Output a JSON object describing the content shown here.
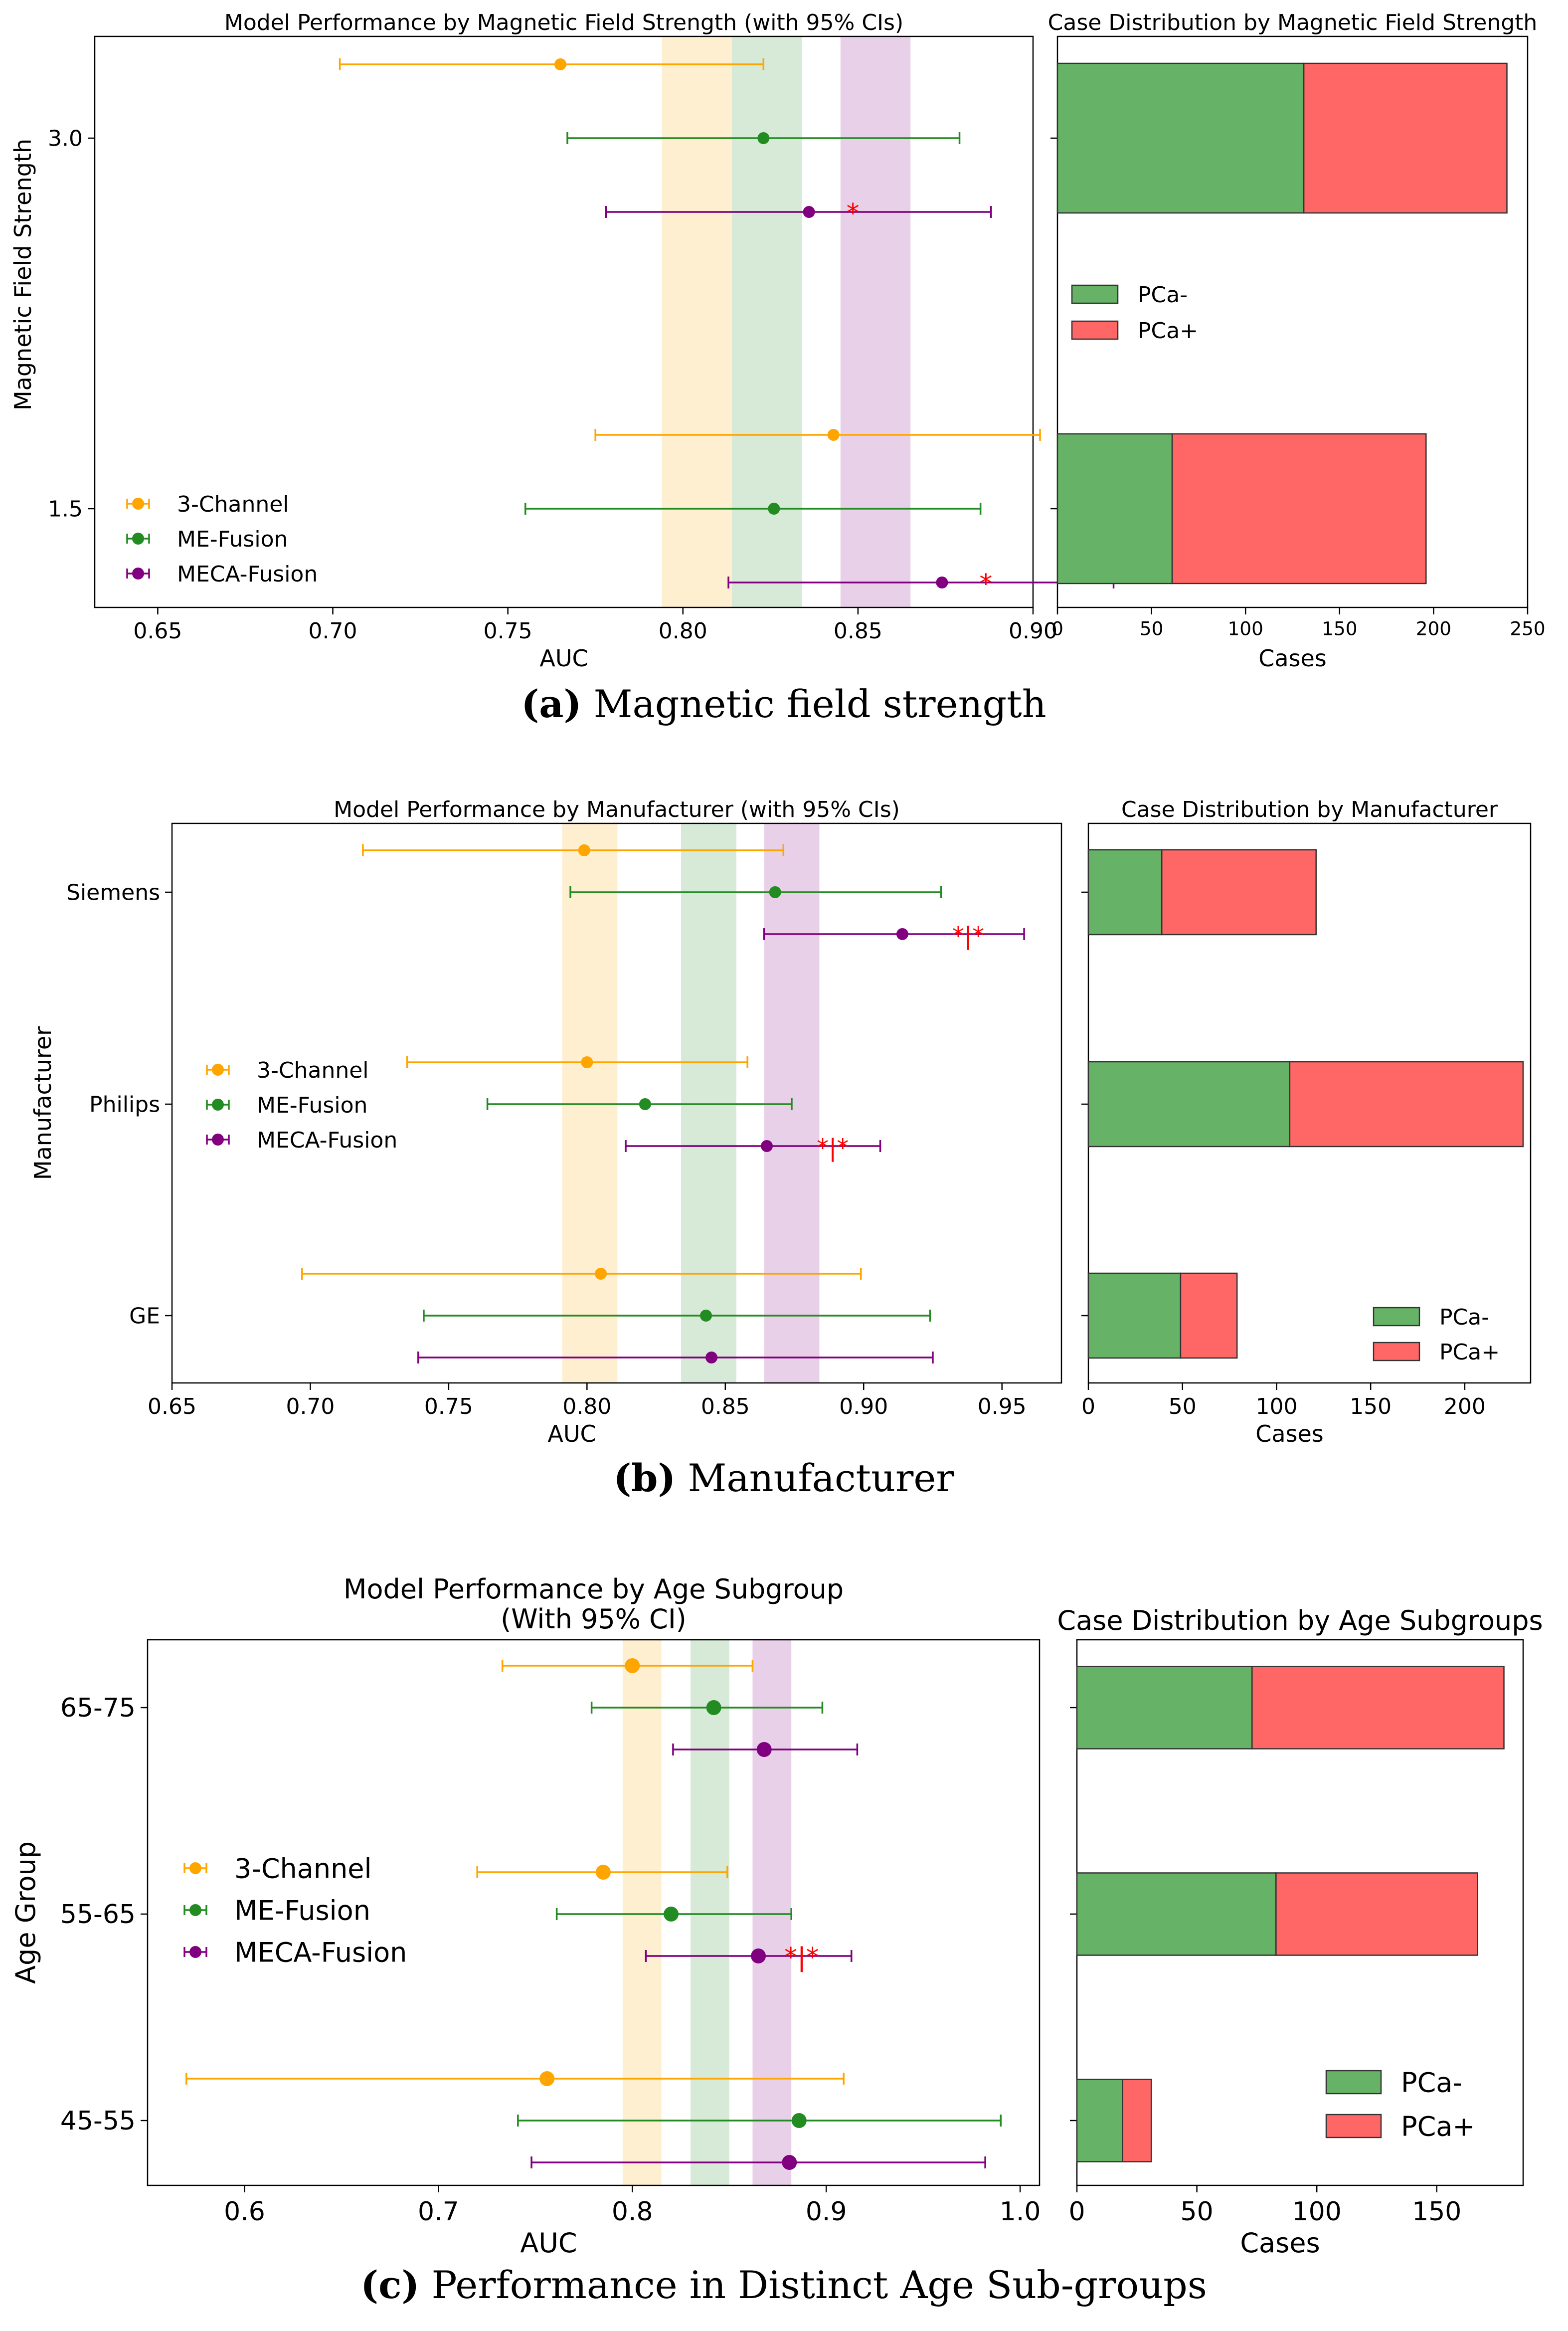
{
  "colors": {
    "three_channel": "#FFA500",
    "me_fusion": "#228B22",
    "meca_fusion": "#800080",
    "pca_neg": "#66B266",
    "pca_pos": "#FF6666",
    "significance": "#FF0000"
  },
  "chart_data": [
    {
      "id": "a",
      "type": "scatter",
      "subtype": "forest-plot",
      "title": "Model Performance by Magnetic Field Strength (with 95% CIs)",
      "xlabel": "AUC",
      "ylabel": "Magnetic Field Strength",
      "xlim": [
        0.632,
        0.9
      ],
      "xticks": [
        0.65,
        0.7,
        0.75,
        0.8,
        0.85,
        0.9
      ],
      "xtick_labels": [
        "0.65",
        "0.70",
        "0.75",
        "0.80",
        "0.85",
        "0.90"
      ],
      "categories": [
        "3.0",
        "1.5"
      ],
      "legend_position": "lower-left",
      "series": [
        {
          "name": "3-Channel",
          "color_key": "three_channel",
          "points": [
            {
              "category": "3.0",
              "auc": 0.765,
              "lo": 0.702,
              "hi": 0.823,
              "sig": ""
            },
            {
              "category": "1.5",
              "auc": 0.843,
              "lo": 0.775,
              "hi": 0.902,
              "sig": ""
            }
          ]
        },
        {
          "name": "ME-Fusion",
          "color_key": "me_fusion",
          "points": [
            {
              "category": "3.0",
              "auc": 0.823,
              "lo": 0.767,
              "hi": 0.879,
              "sig": ""
            },
            {
              "category": "1.5",
              "auc": 0.826,
              "lo": 0.755,
              "hi": 0.885,
              "sig": ""
            }
          ]
        },
        {
          "name": "MECA-Fusion",
          "color_key": "meca_fusion",
          "points": [
            {
              "category": "3.0",
              "auc": 0.836,
              "lo": 0.778,
              "hi": 0.888,
              "sig": "*"
            },
            {
              "category": "1.5",
              "auc": 0.874,
              "lo": 0.813,
              "hi": 0.923,
              "sig": "*"
            }
          ]
        }
      ],
      "bands": [
        {
          "color_key": "three_channel",
          "from": 0.794,
          "to": 0.814
        },
        {
          "color_key": "me_fusion",
          "from": 0.814,
          "to": 0.834
        },
        {
          "color_key": "meca_fusion",
          "from": 0.845,
          "to": 0.865
        }
      ],
      "bar_chart": {
        "type": "bar",
        "orientation": "horizontal",
        "stacked": true,
        "title": "Case Distribution by Magnetic Field Strength",
        "xlabel": "Cases",
        "xlim": [
          0,
          250
        ],
        "xticks": [
          0,
          50,
          100,
          150,
          200,
          250
        ],
        "xtick_labels": [
          "0",
          "50",
          "100",
          "150",
          "200",
          "250"
        ],
        "categories": [
          "3.0",
          "1.5"
        ],
        "series": [
          {
            "name": "PCa-",
            "color_key": "pca_neg",
            "values": [
              131,
              61
            ]
          },
          {
            "name": "PCa+",
            "color_key": "pca_pos",
            "values": [
              108,
              135
            ]
          }
        ],
        "legend_position": "center-left"
      },
      "caption_label": "(a)",
      "caption_text": " Magnetic field strength"
    },
    {
      "id": "b",
      "type": "scatter",
      "subtype": "forest-plot",
      "title": "Model Performance by Manufacturer (with 95% CIs)",
      "xlabel": "AUC",
      "ylabel": "Manufacturer",
      "xlim": [
        0.65,
        0.9715
      ],
      "xticks": [
        0.65,
        0.7,
        0.75,
        0.8,
        0.85,
        0.9,
        0.95
      ],
      "xtick_labels": [
        "0.65",
        "0.70",
        "0.75",
        "0.80",
        "0.85",
        "0.90",
        "0.95"
      ],
      "categories": [
        "Siemens",
        "Philips",
        "GE"
      ],
      "legend_position": "center-left",
      "series": [
        {
          "name": "3-Channel",
          "color_key": "three_channel",
          "points": [
            {
              "category": "Siemens",
              "auc": 0.799,
              "lo": 0.719,
              "hi": 0.871,
              "sig": ""
            },
            {
              "category": "Philips",
              "auc": 0.8,
              "lo": 0.735,
              "hi": 0.858,
              "sig": ""
            },
            {
              "category": "GE",
              "auc": 0.805,
              "lo": 0.697,
              "hi": 0.899,
              "sig": ""
            }
          ]
        },
        {
          "name": "ME-Fusion",
          "color_key": "me_fusion",
          "points": [
            {
              "category": "Siemens",
              "auc": 0.868,
              "lo": 0.794,
              "hi": 0.928,
              "sig": ""
            },
            {
              "category": "Philips",
              "auc": 0.821,
              "lo": 0.764,
              "hi": 0.874,
              "sig": ""
            },
            {
              "category": "GE",
              "auc": 0.843,
              "lo": 0.741,
              "hi": 0.924,
              "sig": ""
            }
          ]
        },
        {
          "name": "MECA-Fusion",
          "color_key": "meca_fusion",
          "points": [
            {
              "category": "Siemens",
              "auc": 0.914,
              "lo": 0.864,
              "hi": 0.958,
              "sig": "*|*"
            },
            {
              "category": "Philips",
              "auc": 0.865,
              "lo": 0.814,
              "hi": 0.906,
              "sig": "*|*"
            },
            {
              "category": "GE",
              "auc": 0.845,
              "lo": 0.739,
              "hi": 0.925,
              "sig": ""
            }
          ]
        }
      ],
      "bands": [
        {
          "color_key": "three_channel",
          "from": 0.791,
          "to": 0.811
        },
        {
          "color_key": "me_fusion",
          "from": 0.834,
          "to": 0.854
        },
        {
          "color_key": "meca_fusion",
          "from": 0.864,
          "to": 0.884
        }
      ],
      "bar_chart": {
        "type": "bar",
        "orientation": "horizontal",
        "stacked": true,
        "title": "Case Distribution by Manufacturer",
        "xlabel": "Cases",
        "xlim": [
          0,
          235
        ],
        "xticks": [
          0,
          50,
          100,
          150,
          200
        ],
        "xtick_labels": [
          "0",
          "50",
          "100",
          "150",
          "200"
        ],
        "categories": [
          "Siemens",
          "Philips",
          "GE"
        ],
        "series": [
          {
            "name": "PCa-",
            "color_key": "pca_neg",
            "values": [
              39,
              107,
              49
            ]
          },
          {
            "name": "PCa+",
            "color_key": "pca_pos",
            "values": [
              82,
              124,
              30
            ]
          }
        ],
        "legend_position": "lower-right"
      },
      "caption_label": "(b)",
      "caption_text": " Manufacturer"
    },
    {
      "id": "c",
      "type": "scatter",
      "subtype": "forest-plot",
      "title": "Model Performance by Age Subgroup\n(With 95% CI)",
      "xlabel": "AUC",
      "ylabel": "Age Group",
      "xlim": [
        0.55,
        1.01
      ],
      "xticks": [
        0.6,
        0.7,
        0.8,
        0.9,
        1.0
      ],
      "xtick_labels": [
        "0.6",
        "0.7",
        "0.8",
        "0.9",
        "1.0"
      ],
      "categories": [
        "65-75",
        "55-65",
        "45-55"
      ],
      "legend_position": "center-left",
      "series": [
        {
          "name": "3-Channel",
          "color_key": "three_channel",
          "points": [
            {
              "category": "65-75",
              "auc": 0.8,
              "lo": 0.733,
              "hi": 0.862,
              "sig": ""
            },
            {
              "category": "55-65",
              "auc": 0.785,
              "lo": 0.72,
              "hi": 0.849,
              "sig": ""
            },
            {
              "category": "45-55",
              "auc": 0.756,
              "lo": 0.57,
              "hi": 0.909,
              "sig": ""
            }
          ]
        },
        {
          "name": "ME-Fusion",
          "color_key": "me_fusion",
          "points": [
            {
              "category": "65-75",
              "auc": 0.842,
              "lo": 0.779,
              "hi": 0.898,
              "sig": ""
            },
            {
              "category": "55-65",
              "auc": 0.82,
              "lo": 0.761,
              "hi": 0.882,
              "sig": ""
            },
            {
              "category": "45-55",
              "auc": 0.886,
              "lo": 0.741,
              "hi": 0.99,
              "sig": ""
            }
          ]
        },
        {
          "name": "MECA-Fusion",
          "color_key": "meca_fusion",
          "points": [
            {
              "category": "65-75",
              "auc": 0.868,
              "lo": 0.821,
              "hi": 0.916,
              "sig": ""
            },
            {
              "category": "55-65",
              "auc": 0.865,
              "lo": 0.807,
              "hi": 0.913,
              "sig": "*|*"
            },
            {
              "category": "45-55",
              "auc": 0.881,
              "lo": 0.748,
              "hi": 0.982,
              "sig": ""
            }
          ]
        }
      ],
      "bands": [
        {
          "color_key": "three_channel",
          "from": 0.795,
          "to": 0.815
        },
        {
          "color_key": "me_fusion",
          "from": 0.83,
          "to": 0.85
        },
        {
          "color_key": "meca_fusion",
          "from": 0.862,
          "to": 0.882
        }
      ],
      "bar_chart": {
        "type": "bar",
        "orientation": "horizontal",
        "stacked": true,
        "title": "Case Distribution by Age Subgroups",
        "xlabel": "Cases",
        "xlim": [
          0,
          186
        ],
        "xticks": [
          0,
          50,
          100,
          150
        ],
        "xtick_labels": [
          "0",
          "50",
          "100",
          "150"
        ],
        "categories": [
          "65-75",
          "55-65",
          "45-55"
        ],
        "series": [
          {
            "name": "PCa-",
            "color_key": "pca_neg",
            "values": [
              73,
              83,
              19
            ]
          },
          {
            "name": "PCa+",
            "color_key": "pca_pos",
            "values": [
              105,
              84,
              12
            ]
          }
        ],
        "legend_position": "lower-right"
      },
      "caption_label": "(c)",
      "caption_text": " Performance in Distinct Age Sub-groups"
    }
  ]
}
